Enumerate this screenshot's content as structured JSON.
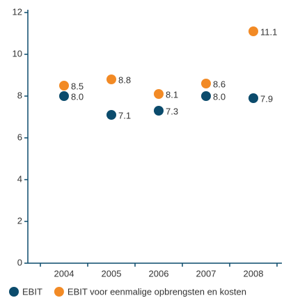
{
  "chart_data": {
    "type": "dot",
    "categories": [
      "2004",
      "2005",
      "2006",
      "2007",
      "2008"
    ],
    "series": [
      {
        "name": "EBIT",
        "color": "#0b4b6c",
        "values": [
          8.0,
          7.1,
          7.3,
          8.0,
          7.9
        ],
        "value_labels": [
          "8.0",
          "7.1",
          "7.3",
          "8.0",
          "7.9"
        ]
      },
      {
        "name": "EBIT voor eenmalige opbrengsten en kosten",
        "color": "#f28a25",
        "values": [
          8.5,
          8.8,
          8.1,
          8.6,
          11.1
        ]
      }
    ],
    "ylim": [
      0,
      12
    ],
    "yticks": [
      0,
      2,
      4,
      6,
      8,
      10,
      12
    ]
  }
}
